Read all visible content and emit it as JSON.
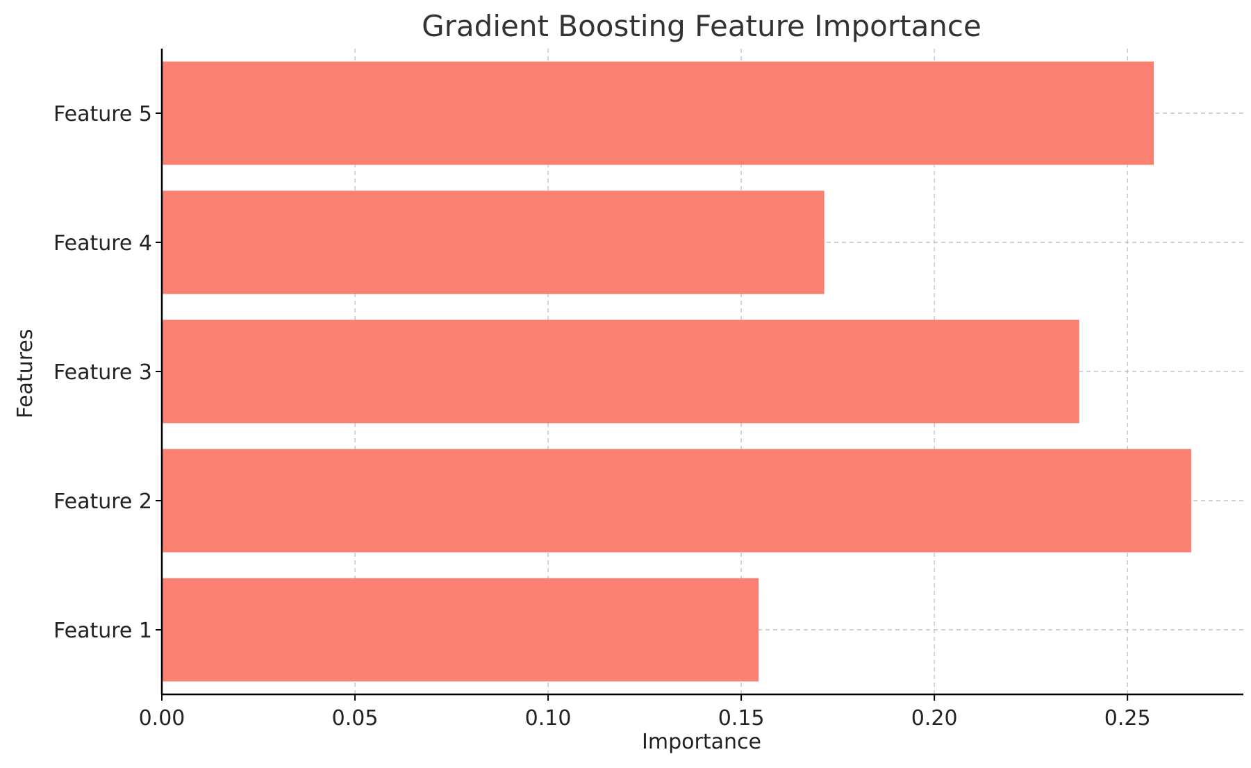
{
  "chart_data": {
    "type": "bar",
    "orientation": "horizontal",
    "title": "Gradient Boosting Feature Importance",
    "xlabel": "Importance",
    "ylabel": "Features",
    "categories": [
      "Feature 1",
      "Feature 2",
      "Feature 3",
      "Feature 4",
      "Feature 5"
    ],
    "values": [
      0.1545,
      0.2665,
      0.2375,
      0.1715,
      0.2568
    ],
    "xlim": [
      0,
      0.28
    ],
    "xticks": [
      0.0,
      0.05,
      0.1,
      0.15,
      0.2,
      0.25
    ],
    "xtick_labels": [
      "0.00",
      "0.05",
      "0.10",
      "0.15",
      "0.20",
      "0.25"
    ],
    "grid": true,
    "bar_color": "#fa8072"
  }
}
